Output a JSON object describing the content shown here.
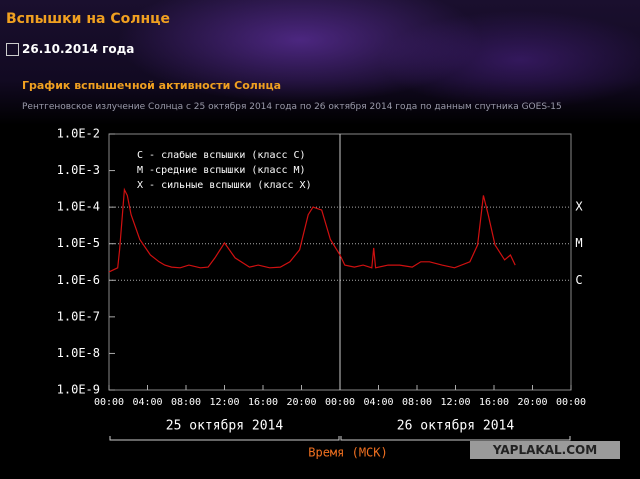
{
  "header": {
    "title": "Вспышки на Солнце",
    "date": "26.10.2014 года",
    "subtitle": "График вспышечной активности Солнца",
    "description": "Рентгеновское излучение Солнца с 25 октября 2014 года по 26 октября 2014 года по данным спутника GOES-15"
  },
  "watermark": "YAPLAKAL.COM",
  "chart_data": {
    "type": "line",
    "log_y": true,
    "xlabel": "Время (МСК)",
    "xlim": [
      0,
      48
    ],
    "xticks": [
      {
        "value": 0,
        "label": "00:00"
      },
      {
        "value": 4,
        "label": "04:00"
      },
      {
        "value": 8,
        "label": "08:00"
      },
      {
        "value": 12,
        "label": "12:00"
      },
      {
        "value": 16,
        "label": "16:00"
      },
      {
        "value": 20,
        "label": "20:00"
      },
      {
        "value": 24,
        "label": "00:00"
      },
      {
        "value": 28,
        "label": "04:00"
      },
      {
        "value": 32,
        "label": "08:00"
      },
      {
        "value": 36,
        "label": "12:00"
      },
      {
        "value": 40,
        "label": "16:00"
      },
      {
        "value": 44,
        "label": "20:00"
      },
      {
        "value": 48,
        "label": "00:00"
      }
    ],
    "ylim": [
      1e-09,
      0.01
    ],
    "yticks": [
      {
        "value": 1e-09,
        "label": "1.0E-9"
      },
      {
        "value": 1e-08,
        "label": "1.0E-8"
      },
      {
        "value": 1e-07,
        "label": "1.0E-7"
      },
      {
        "value": 1e-06,
        "label": "1.0E-6"
      },
      {
        "value": 1e-05,
        "label": "1.0E-5"
      },
      {
        "value": 0.0001,
        "label": "1.0E-4"
      },
      {
        "value": 0.001,
        "label": "1.0E-3"
      },
      {
        "value": 0.01,
        "label": "1.0E-2"
      }
    ],
    "levels": [
      {
        "value": 0.0001,
        "label": "X"
      },
      {
        "value": 1e-05,
        "label": "M"
      },
      {
        "value": 1e-06,
        "label": "C"
      }
    ],
    "legend_lines": [
      "C - слабые вспышки (класс C)",
      "M -средние вспышки (класс M)",
      "X - сильные вспышки (класс X)"
    ],
    "days": [
      {
        "label": "25 октября 2014",
        "start": 0,
        "end": 24
      },
      {
        "label": "26 октября 2014",
        "start": 24,
        "end": 48
      }
    ],
    "day_divider": 24,
    "series": [
      {
        "color": "#d01010",
        "x": [
          0,
          0.9,
          1.1,
          1.6,
          1.9,
          2.3,
          3.2,
          4.3,
          5.2,
          5.8,
          6.5,
          7.4,
          8.3,
          9.5,
          10.3,
          11,
          12,
          13.1,
          14.6,
          15.5,
          16.7,
          17.8,
          18.8,
          19.8,
          20.7,
          21.2,
          22.1,
          23,
          24,
          24.5,
          25.5,
          26.4,
          27.3,
          27.5,
          27.7,
          29,
          30.2,
          31.5,
          32.4,
          33.3,
          34.6,
          35.9,
          37.5,
          38.3,
          38.9,
          39.4,
          40.1,
          41.1,
          41.7,
          42.2
        ],
        "values": [
          1.7e-06,
          2.2e-06,
          6.8e-06,
          0.0003,
          0.00021,
          6.2e-05,
          1.3e-05,
          4.9e-06,
          3.2e-06,
          2.6e-06,
          2.3e-06,
          2.2e-06,
          2.6e-06,
          2.2e-06,
          2.3e-06,
          4.1e-06,
          1.05e-05,
          4.1e-06,
          2.3e-06,
          2.6e-06,
          2.2e-06,
          2.3e-06,
          3.2e-06,
          6.8e-06,
          6.2e-05,
          0.0001,
          8.3e-05,
          1.3e-05,
          4.9e-06,
          2.6e-06,
          2.3e-06,
          2.6e-06,
          2.2e-06,
          7.7e-06,
          2.2e-06,
          2.6e-06,
          2.6e-06,
          2.3e-06,
          3.2e-06,
          3.2e-06,
          2.6e-06,
          2.2e-06,
          3.2e-06,
          9.3e-06,
          0.00021,
          6.2e-05,
          9.3e-06,
          3.6e-06,
          4.9e-06,
          2.6e-06
        ]
      }
    ]
  }
}
